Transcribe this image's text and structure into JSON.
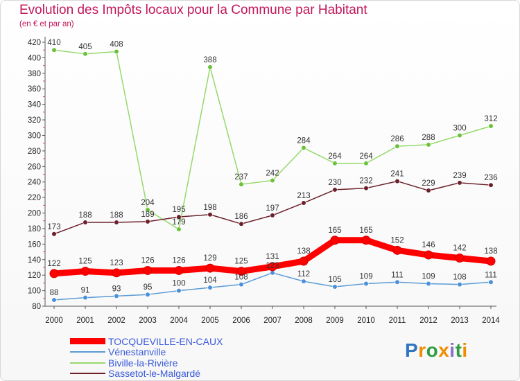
{
  "header": {
    "title": "Evolution des Impôts locaux pour la Commune par Habitant",
    "subtitle": "(en € et par an)"
  },
  "brand": {
    "letters": [
      "P",
      "r",
      "o",
      "x",
      "i",
      "t",
      "i"
    ],
    "colors": [
      "#2f74c0",
      "#f08c00",
      "#2e9e44",
      "#f08c00",
      "#8a6fc9",
      "#2e9e44",
      "#f08c00"
    ]
  },
  "chart_data": {
    "type": "line",
    "title": "Evolution des Impôts locaux pour la Commune par Habitant",
    "subtitle": "(en € et par an)",
    "xlabel": "",
    "ylabel": "",
    "ylim": [
      80,
      420
    ],
    "y_ticks": [
      80,
      100,
      120,
      140,
      160,
      180,
      200,
      220,
      240,
      260,
      280,
      300,
      320,
      340,
      360,
      380,
      400,
      420
    ],
    "grid": false,
    "legend_position": "bottom-left",
    "categories": [
      "2000",
      "2001",
      "2002",
      "2003",
      "2004",
      "2005",
      "2006",
      "2007",
      "2008",
      "2009",
      "2010",
      "2011",
      "2012",
      "2013",
      "2014"
    ],
    "series": [
      {
        "name": "Biville-la-Rivière",
        "color": "#96d96a",
        "point_color": "#6cc13b",
        "values": [
          410,
          405,
          408,
          204,
          179,
          388,
          237,
          242,
          284,
          264,
          264,
          286,
          288,
          300,
          312
        ]
      },
      {
        "name": "Sassetot-le-Malgardé",
        "color": "#6b1f2a",
        "point_color": "#6b1f2a",
        "values": [
          173,
          188,
          188,
          189,
          195,
          198,
          186,
          197,
          213,
          230,
          232,
          241,
          229,
          239,
          236
        ]
      },
      {
        "name": "Vénestanville",
        "color": "#5b9bd5",
        "point_color": "#4a90d9",
        "values": [
          88,
          91,
          93,
          95,
          100,
          104,
          108,
          123,
          112,
          105,
          109,
          111,
          109,
          108,
          111
        ]
      },
      {
        "name": "TOCQUEVILLE-EN-CAUX",
        "color": "#ff0000",
        "point_color": "#ff0000",
        "values": [
          122,
          125,
          123,
          126,
          126,
          129,
          125,
          131,
          138,
          165,
          165,
          152,
          146,
          142,
          138
        ]
      }
    ],
    "legend_order": [
      "TOCQUEVILLE-EN-CAUX",
      "Vénestanville",
      "Biville-la-Rivière",
      "Sassetot-le-Malgardé"
    ]
  }
}
